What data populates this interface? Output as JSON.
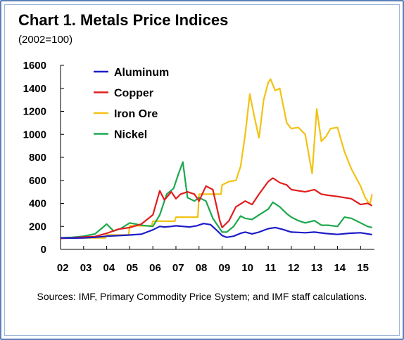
{
  "title": "Chart 1. Metals Price Indices",
  "subtitle": "(2002=100)",
  "source": "Sources: IMF, Primary Commodity Price System; and IMF staff calculations.",
  "colors": {
    "aluminum": "#1c1cc8",
    "copper": "#e01e1e",
    "iron_ore": "#f2c214",
    "nickel": "#1ca84e",
    "frame": "#5b7fb8"
  },
  "chart_data": {
    "type": "line",
    "title": "Chart 1. Metals Price Indices",
    "subtitle": "(2002=100)",
    "xlabel": "",
    "ylabel": "",
    "xlim": [
      2002,
      2015.6
    ],
    "ylim": [
      0,
      1600
    ],
    "y_ticks": [
      0,
      200,
      400,
      600,
      800,
      1000,
      1200,
      1400,
      1600
    ],
    "y_tick_labels": [
      "0",
      "200",
      "400",
      "600",
      "800",
      "1000",
      "1200",
      "1400",
      "1600"
    ],
    "x_tick_labels": [
      "02",
      "03",
      "04",
      "05",
      "06",
      "07",
      "08",
      "09",
      "10",
      "11",
      "12",
      "13",
      "14",
      "15"
    ],
    "legend_position": "top-left",
    "grid": false,
    "series": [
      {
        "name": "Aluminum",
        "x": [
          2002,
          2002.5,
          2003,
          2003.5,
          2004,
          2004.5,
          2005,
          2005.5,
          2006,
          2006.3,
          2006.5,
          2006.8,
          2007,
          2007.3,
          2007.6,
          2007.9,
          2008.2,
          2008.5,
          2008.8,
          2009.0,
          2009.2,
          2009.5,
          2009.8,
          2010.0,
          2010.3,
          2010.6,
          2011.0,
          2011.3,
          2011.6,
          2012.0,
          2012.3,
          2012.6,
          2013.0,
          2013.5,
          2014.0,
          2014.5,
          2015.0,
          2015.3,
          2015.5
        ],
        "values": [
          100,
          98,
          100,
          105,
          115,
          120,
          125,
          132,
          170,
          200,
          195,
          200,
          205,
          200,
          195,
          205,
          225,
          215,
          160,
          120,
          105,
          115,
          140,
          150,
          135,
          150,
          180,
          190,
          175,
          150,
          148,
          145,
          150,
          138,
          130,
          140,
          145,
          135,
          128
        ]
      },
      {
        "name": "Copper",
        "x": [
          2002,
          2002.5,
          2003,
          2003.5,
          2004,
          2004.5,
          2005,
          2005.5,
          2006,
          2006.3,
          2006.5,
          2006.8,
          2007,
          2007.2,
          2007.5,
          2007.8,
          2008.0,
          2008.3,
          2008.6,
          2008.9,
          2009.0,
          2009.3,
          2009.6,
          2010.0,
          2010.3,
          2010.6,
          2011.0,
          2011.2,
          2011.5,
          2011.8,
          2012.0,
          2012.3,
          2012.6,
          2013.0,
          2013.3,
          2013.6,
          2014.0,
          2014.3,
          2014.6,
          2015.0,
          2015.3,
          2015.5
        ],
        "values": [
          95,
          100,
          108,
          112,
          140,
          175,
          190,
          220,
          300,
          510,
          430,
          500,
          440,
          480,
          500,
          480,
          420,
          550,
          520,
          250,
          190,
          250,
          370,
          420,
          390,
          480,
          590,
          620,
          580,
          560,
          520,
          510,
          500,
          520,
          480,
          470,
          460,
          450,
          440,
          390,
          400,
          380
        ]
      },
      {
        "name": "Iron Ore",
        "x": [
          2002,
          2003,
          2003.95,
          2004,
          2004.95,
          2005.0,
          2005.95,
          2006.0,
          2006.95,
          2007.0,
          2007.95,
          2008.0,
          2008.95,
          2009.0,
          2009.3,
          2009.6,
          2009.8,
          2010.0,
          2010.2,
          2010.4,
          2010.6,
          2010.8,
          2011.0,
          2011.1,
          2011.3,
          2011.5,
          2011.8,
          2012.0,
          2012.3,
          2012.6,
          2012.9,
          2013.1,
          2013.3,
          2013.5,
          2013.7,
          2014.0,
          2014.3,
          2014.6,
          2015.0,
          2015.2,
          2015.4,
          2015.5
        ],
        "values": [
          100,
          100,
          100,
          125,
          125,
          205,
          205,
          245,
          245,
          280,
          280,
          480,
          480,
          560,
          590,
          600,
          720,
          1000,
          1350,
          1150,
          970,
          1300,
          1450,
          1480,
          1380,
          1400,
          1100,
          1050,
          1060,
          1000,
          660,
          1220,
          940,
          980,
          1050,
          1060,
          850,
          700,
          550,
          450,
          390,
          480
        ]
      },
      {
        "name": "Nickel",
        "x": [
          2002,
          2002.5,
          2003,
          2003.5,
          2004.0,
          2004.3,
          2004.6,
          2005.0,
          2005.5,
          2006.0,
          2006.3,
          2006.6,
          2006.9,
          2007.1,
          2007.3,
          2007.5,
          2007.8,
          2008.0,
          2008.3,
          2008.6,
          2008.9,
          2009.0,
          2009.2,
          2009.5,
          2009.8,
          2010.0,
          2010.3,
          2010.6,
          2011.0,
          2011.2,
          2011.5,
          2011.8,
          2012.0,
          2012.3,
          2012.6,
          2013.0,
          2013.3,
          2013.6,
          2014.0,
          2014.3,
          2014.6,
          2015.0,
          2015.3,
          2015.5
        ],
        "values": [
          100,
          105,
          115,
          135,
          220,
          160,
          180,
          230,
          210,
          200,
          300,
          480,
          530,
          650,
          760,
          450,
          420,
          450,
          420,
          270,
          180,
          150,
          150,
          200,
          290,
          270,
          260,
          300,
          350,
          410,
          370,
          310,
          280,
          250,
          230,
          250,
          210,
          210,
          200,
          280,
          270,
          230,
          200,
          190
        ]
      }
    ]
  }
}
